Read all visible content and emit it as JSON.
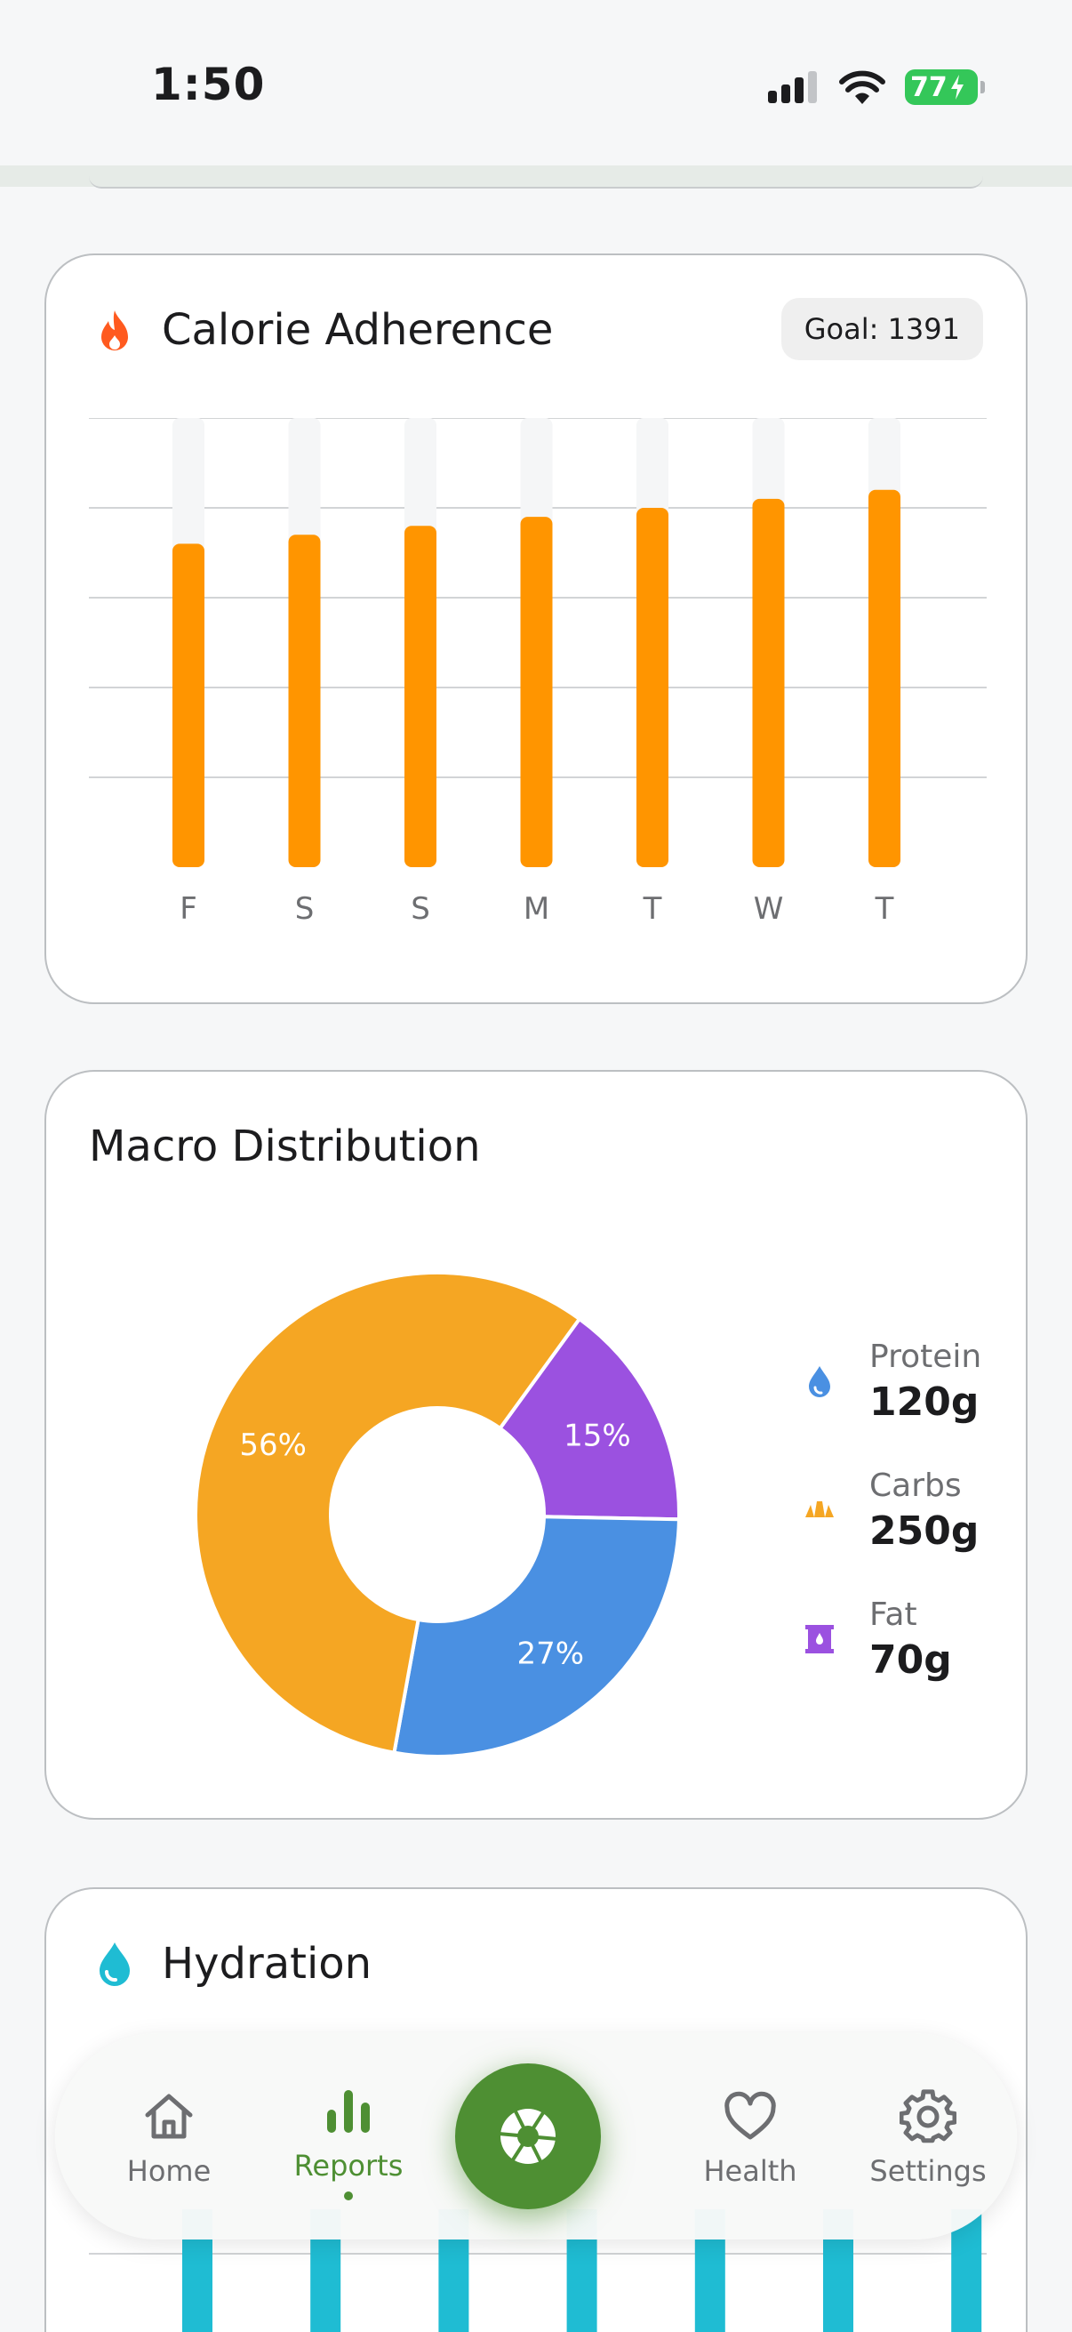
{
  "status_bar": {
    "time": "1:50",
    "battery": "77"
  },
  "calorie_card": {
    "title": "Calorie Adherence",
    "goal_label": "Goal: 1391",
    "icon": "flame-icon",
    "accent": "#ff9500",
    "chart_data": {
      "type": "bar",
      "categories": [
        "F",
        "S",
        "S",
        "M",
        "T",
        "W",
        "T"
      ],
      "values": [
        1080,
        1110,
        1140,
        1170,
        1200,
        1230,
        1260
      ],
      "ylim": [
        0,
        1500
      ],
      "grid": true
    }
  },
  "macro_card": {
    "title": "Macro Distribution",
    "chart_data": {
      "type": "pie",
      "donut": true,
      "slices": [
        {
          "label": "56%",
          "value": 56,
          "color": "#f5a623"
        },
        {
          "label": "15%",
          "value": 15,
          "color": "#9b51e0"
        },
        {
          "label": "27%",
          "value": 27,
          "color": "#4a90e2"
        }
      ]
    },
    "legend": [
      {
        "name": "Protein",
        "value": "120g",
        "icon": "drop-icon",
        "color": "#4a90e2"
      },
      {
        "name": "Carbs",
        "value": "250g",
        "icon": "croissant-icon",
        "color": "#f5a623"
      },
      {
        "name": "Fat",
        "value": "70g",
        "icon": "oil-icon",
        "color": "#9b51e0"
      }
    ]
  },
  "hydration_card": {
    "title": "Hydration",
    "icon": "water-drop-icon",
    "accent": "#1fbcd3",
    "chart_data": {
      "type": "bar",
      "categories": [
        "",
        "",
        "",
        "",
        "",
        "",
        ""
      ],
      "values": [
        1,
        1,
        1,
        1,
        1,
        1,
        1
      ]
    }
  },
  "nav": {
    "items": [
      {
        "label": "Home",
        "icon": "home-icon"
      },
      {
        "label": "Reports",
        "icon": "bar-chart-icon",
        "active": true
      },
      {
        "label": "Health",
        "icon": "heart-icon"
      },
      {
        "label": "Settings",
        "icon": "gear-icon"
      }
    ],
    "center": {
      "icon": "camera-shutter-icon"
    }
  }
}
